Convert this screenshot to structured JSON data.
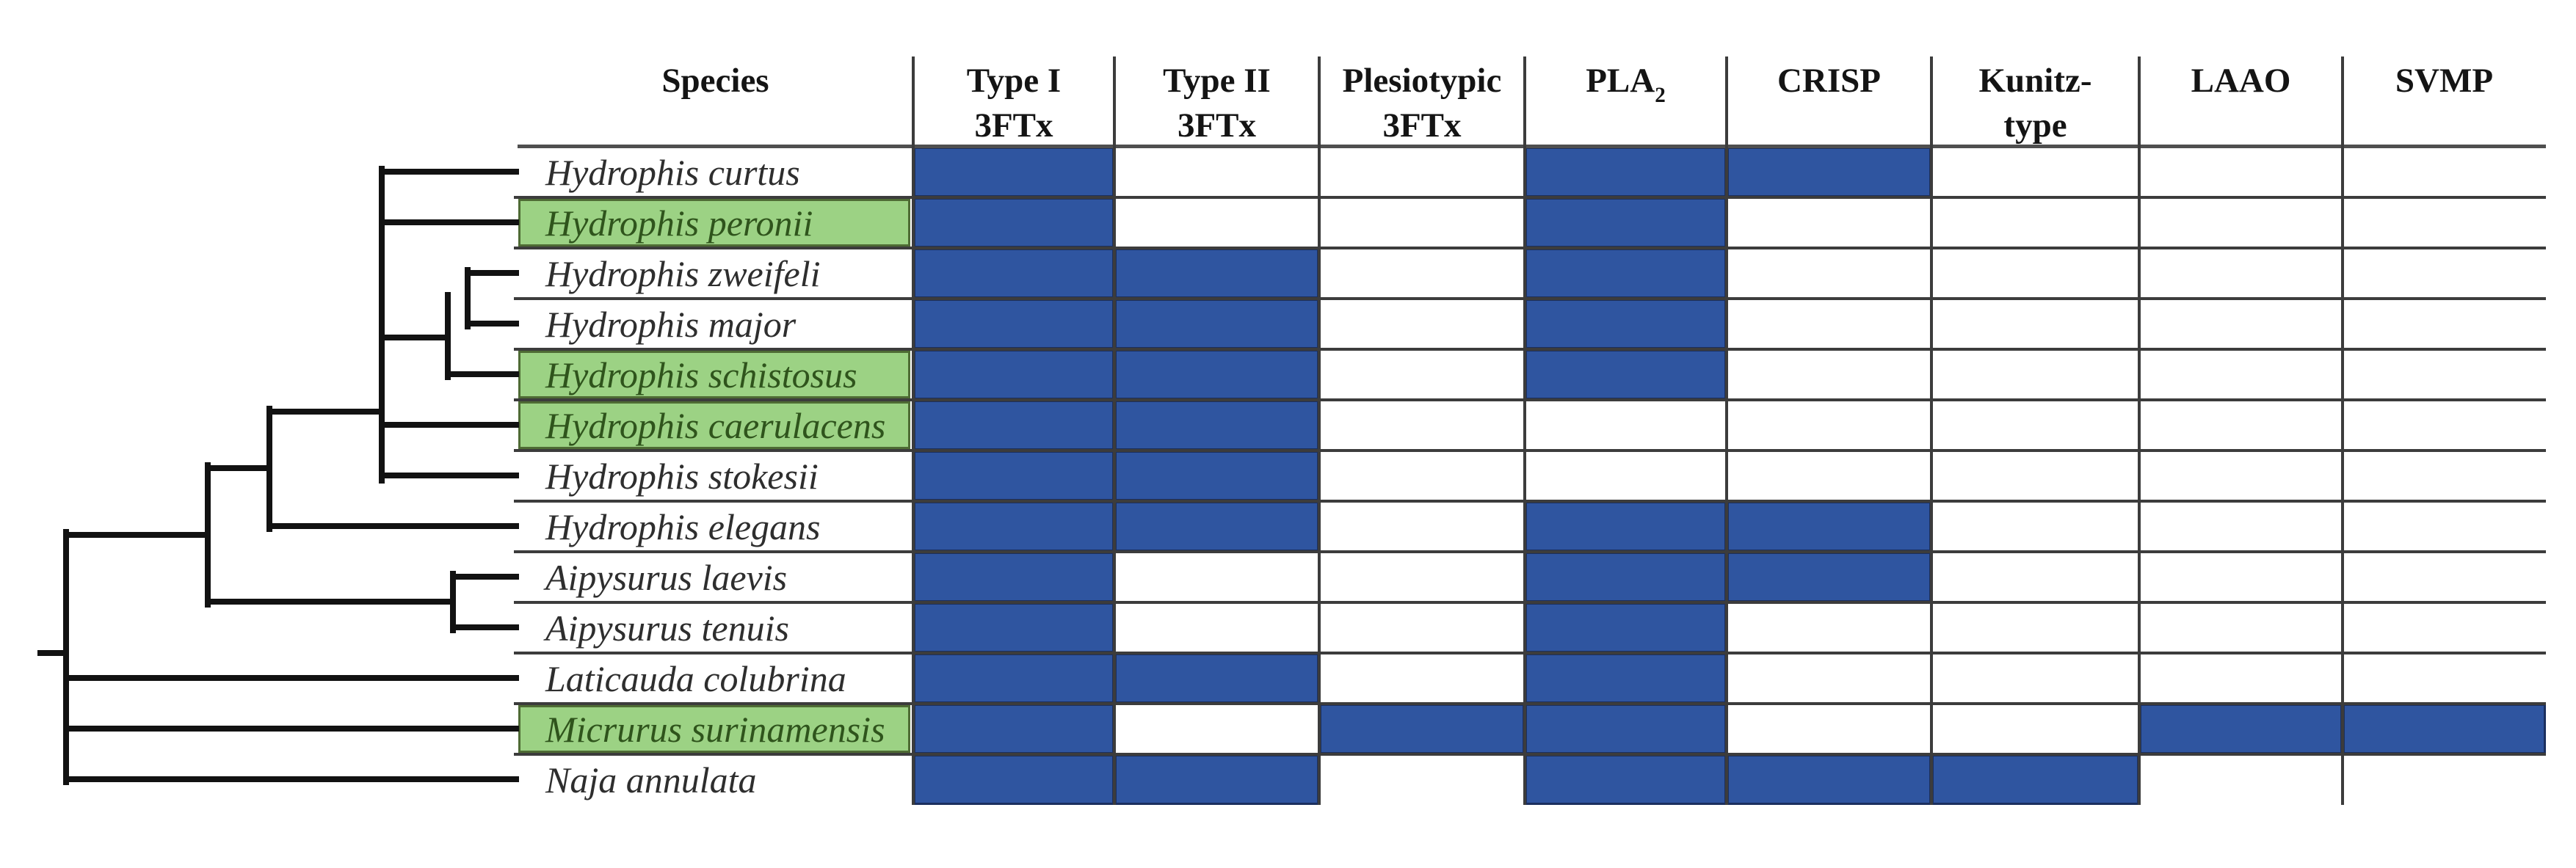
{
  "figure": {
    "title_semantic": "Toxin family presence/absence across snake species with phylogeny",
    "header": {
      "species_label": "Species",
      "columns": [
        {
          "id": "type1-3ftx",
          "lines": [
            "Type I",
            "3FTx"
          ]
        },
        {
          "id": "type2-3ftx",
          "lines": [
            "Type II",
            "3FTx"
          ]
        },
        {
          "id": "plesiotypic-3ftx",
          "lines": [
            "Plesiotypic",
            "3FTx"
          ]
        },
        {
          "id": "pla2",
          "lines": [
            "PLA"
          ],
          "subscript": "2"
        },
        {
          "id": "crisp",
          "lines": [
            "CRISP"
          ]
        },
        {
          "id": "kunitz-type",
          "lines": [
            "Kunitz-",
            "type"
          ]
        },
        {
          "id": "laao",
          "lines": [
            "LAAO"
          ]
        },
        {
          "id": "svmp",
          "lines": [
            "SVMP"
          ]
        }
      ]
    },
    "rows": [
      {
        "species": "Hydrophis curtus",
        "highlighted": false,
        "toxins": [
          1,
          0,
          0,
          1,
          1,
          0,
          0,
          0
        ]
      },
      {
        "species": "Hydrophis peronii",
        "highlighted": true,
        "toxins": [
          1,
          0,
          0,
          1,
          0,
          0,
          0,
          0
        ]
      },
      {
        "species": "Hydrophis zweifeli",
        "highlighted": false,
        "toxins": [
          1,
          1,
          0,
          1,
          0,
          0,
          0,
          0
        ]
      },
      {
        "species": "Hydrophis major",
        "highlighted": false,
        "toxins": [
          1,
          1,
          0,
          1,
          0,
          0,
          0,
          0
        ]
      },
      {
        "species": "Hydrophis schistosus",
        "highlighted": true,
        "toxins": [
          1,
          1,
          0,
          1,
          0,
          0,
          0,
          0
        ]
      },
      {
        "species": "Hydrophis caerulacens",
        "highlighted": true,
        "toxins": [
          1,
          1,
          0,
          0,
          0,
          0,
          0,
          0
        ]
      },
      {
        "species": "Hydrophis stokesii",
        "highlighted": false,
        "toxins": [
          1,
          1,
          0,
          0,
          0,
          0,
          0,
          0
        ]
      },
      {
        "species": "Hydrophis elegans",
        "highlighted": false,
        "toxins": [
          1,
          1,
          0,
          1,
          1,
          0,
          0,
          0
        ]
      },
      {
        "species": "Aipysurus laevis",
        "highlighted": false,
        "toxins": [
          1,
          0,
          0,
          1,
          1,
          0,
          0,
          0
        ]
      },
      {
        "species": "Aipysurus tenuis",
        "highlighted": false,
        "toxins": [
          1,
          0,
          0,
          1,
          0,
          0,
          0,
          0
        ]
      },
      {
        "species": "Laticauda colubrina",
        "highlighted": false,
        "toxins": [
          1,
          1,
          0,
          1,
          0,
          0,
          0,
          0
        ]
      },
      {
        "species": "Micrurus surinamensis",
        "highlighted": true,
        "toxins": [
          1,
          0,
          1,
          1,
          0,
          0,
          1,
          1
        ]
      },
      {
        "species": "Naja annulata",
        "highlighted": false,
        "toxins": [
          1,
          1,
          0,
          1,
          1,
          1,
          0,
          0
        ]
      }
    ],
    "tree": {
      "newick": "((((((((Hydrophis curtus,Hydrophis peronii),((Hydrophis zweifeli,Hydrophis major),Hydrophis schistosus)),Hydrophis caerulacens),Hydrophis stokesii),Hydrophis elegans),(Aipysurus laevis,Aipysurus tenuis)),Laticauda colubrina),Micrurus surinamensis,Naja annulata)"
    },
    "colors": {
      "present_fill": "#2F55A0",
      "present_border": "#1B2F5E",
      "highlight_fill": "#9CD284",
      "highlight_border": "#4E6B34",
      "highlight_text": "#2F541C",
      "species_text": "#2E2E2E",
      "header_text": "#141414",
      "grid_line": "#3C3C3C",
      "table_top_border": "#4F4F4F",
      "tree_line": "#121212",
      "background": "#FFFFFF"
    }
  }
}
